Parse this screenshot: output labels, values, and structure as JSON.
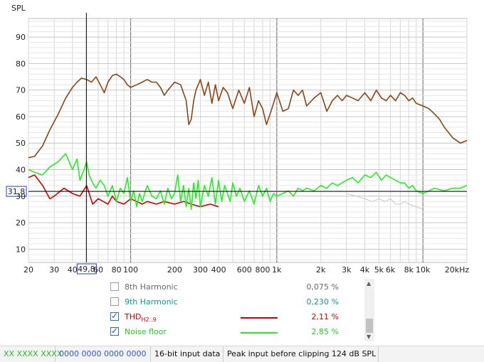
{
  "chart_data": {
    "type": "line",
    "ylabel": "SPL",
    "x_scale": "log",
    "xlim": [
      20,
      20000
    ],
    "ylim": [
      5,
      97
    ],
    "grid": true,
    "y_ticks": [
      10,
      20,
      30,
      40,
      50,
      60,
      70,
      80,
      90
    ],
    "x_ticks": [
      {
        "v": 20,
        "label": "20"
      },
      {
        "v": 30,
        "label": "30"
      },
      {
        "v": 40,
        "label": "40"
      },
      {
        "v": 60,
        "label": "60"
      },
      {
        "v": 80,
        "label": "80"
      },
      {
        "v": 100,
        "label": "100"
      },
      {
        "v": 200,
        "label": "200"
      },
      {
        "v": 300,
        "label": "300"
      },
      {
        "v": 400,
        "label": "400"
      },
      {
        "v": 600,
        "label": "600"
      },
      {
        "v": 800,
        "label": "800"
      },
      {
        "v": 1000,
        "label": "1k"
      },
      {
        "v": 2000,
        "label": "2k"
      },
      {
        "v": 3000,
        "label": "3k"
      },
      {
        "v": 4000,
        "label": "4k"
      },
      {
        "v": 5000,
        "label": "5k"
      },
      {
        "v": 6000,
        "label": "6k"
      },
      {
        "v": 8000,
        "label": "8k"
      },
      {
        "v": 10000,
        "label": "10k"
      },
      {
        "v": 20000,
        "label": "20kHz"
      }
    ],
    "cursor": {
      "x": 49.8,
      "y": 31.8,
      "x_label": "49,8",
      "y_label": "31,8"
    },
    "series": [
      {
        "name": "",
        "color": "#8b4513",
        "x": [
          20,
          22,
          25,
          28,
          32,
          36,
          40,
          43,
          46,
          50,
          54,
          58,
          62,
          66,
          70,
          75,
          80,
          85,
          90,
          95,
          100,
          110,
          120,
          130,
          140,
          150,
          160,
          170,
          180,
          200,
          220,
          240,
          250,
          260,
          270,
          280,
          290,
          300,
          320,
          340,
          360,
          380,
          400,
          430,
          460,
          500,
          550,
          600,
          650,
          700,
          750,
          800,
          850,
          900,
          950,
          1000,
          1100,
          1200,
          1300,
          1400,
          1500,
          1600,
          1800,
          2000,
          2200,
          2400,
          2600,
          2800,
          3000,
          3300,
          3600,
          4000,
          4400,
          4800,
          5200,
          5600,
          6000,
          6500,
          7000,
          7500,
          8000,
          8500,
          9000,
          10000,
          11000,
          12000,
          13000,
          14000,
          16000,
          18000,
          20000
        ],
        "y": [
          44.5,
          45,
          49,
          55,
          61,
          67,
          71,
          73,
          74.5,
          74,
          73,
          75,
          72,
          69,
          73,
          75.5,
          76,
          75,
          74,
          72,
          71,
          72,
          73,
          74,
          73,
          73,
          71,
          68,
          70,
          73,
          72,
          66,
          57,
          59,
          66,
          70,
          72,
          74,
          68,
          73,
          65,
          72,
          66,
          71,
          69,
          63,
          70,
          65,
          71,
          60,
          66,
          63,
          57,
          61,
          65,
          69,
          62,
          63,
          70,
          68,
          70,
          64,
          67,
          69,
          62,
          66,
          68,
          66,
          68,
          67,
          66,
          69,
          66,
          70,
          67,
          66,
          68,
          66,
          69,
          68,
          66,
          67,
          65,
          64,
          63,
          61,
          59,
          56,
          52,
          50,
          51
        ]
      },
      {
        "name": "THD",
        "color": "#cc0000",
        "x": [
          20,
          22,
          25,
          28,
          30,
          35,
          40,
          45,
          50,
          55,
          60,
          65,
          70,
          75,
          80,
          90,
          100,
          110,
          120,
          130,
          150,
          170,
          200,
          230,
          260,
          300,
          350,
          400
        ],
        "y": [
          37,
          38,
          34,
          29,
          30,
          33,
          31,
          30,
          34,
          27,
          29,
          28,
          27,
          30,
          28,
          27,
          29,
          28,
          27,
          28,
          27,
          28,
          27,
          28,
          27,
          26,
          27,
          26
        ]
      },
      {
        "name": "Noise floor",
        "color": "#22ee22",
        "x": [
          20,
          22,
          25,
          28,
          32,
          36,
          40,
          43,
          45,
          48,
          50,
          52,
          55,
          58,
          62,
          66,
          70,
          75,
          80,
          85,
          90,
          95,
          100,
          105,
          110,
          115,
          120,
          130,
          140,
          150,
          160,
          170,
          180,
          190,
          200,
          210,
          220,
          230,
          240,
          250,
          260,
          270,
          280,
          290,
          300,
          320,
          340,
          360,
          380,
          400,
          420,
          440,
          460,
          480,
          500,
          530,
          560,
          600,
          650,
          700,
          750,
          800,
          850,
          900,
          950,
          1000,
          1100,
          1200,
          1300,
          1400,
          1500,
          1600,
          1800,
          2000,
          2200,
          2400,
          2600,
          2800,
          3000,
          3300,
          3600,
          4000,
          4400,
          4800,
          5200,
          5600,
          6000,
          6500,
          7000,
          7500,
          8000,
          8500,
          9000,
          10000,
          11000,
          12000,
          14000,
          16000,
          18000,
          20000
        ],
        "y": [
          40,
          39,
          38,
          41,
          43,
          46,
          40,
          44,
          36,
          40,
          43,
          38,
          35,
          33,
          36,
          34,
          30,
          34,
          28,
          33,
          31,
          37,
          28,
          32,
          26,
          31,
          28,
          34,
          30,
          29,
          32,
          27,
          33,
          29,
          31,
          38,
          28,
          34,
          26,
          33,
          25,
          35,
          29,
          36,
          26,
          34,
          30,
          37,
          27,
          36,
          28,
          34,
          31,
          28,
          35,
          30,
          33,
          28,
          32,
          27,
          34,
          30,
          33,
          28,
          31,
          30,
          31,
          32,
          30,
          33,
          32,
          33,
          32,
          34,
          33,
          35,
          34,
          35,
          36,
          37,
          35,
          38,
          37,
          39,
          36,
          38,
          37,
          36,
          35,
          35,
          33,
          34,
          32,
          31,
          32,
          33,
          32,
          33,
          33,
          34
        ]
      },
      {
        "name": "",
        "color": "#c8c8c8",
        "x": [
          3000,
          3500,
          4000,
          4500,
          5000,
          5500,
          6000,
          6500,
          7000,
          7500,
          8000,
          9000,
          10000
        ],
        "y": [
          31,
          30,
          29,
          28,
          29,
          28,
          29,
          27,
          27,
          28,
          27,
          26,
          25
        ]
      }
    ]
  },
  "legend": {
    "rows": [
      {
        "label": "8th Harmonic",
        "value": "0,075 %",
        "checked": false,
        "color": "#666666"
      },
      {
        "label": "9th Harmonic",
        "value": "0,230 %",
        "checked": false,
        "color": "#0a9a9a"
      },
      {
        "label": "THD",
        "sub": "H2..9",
        "value": "2,11 %",
        "checked": true,
        "color": "#cc0000"
      },
      {
        "label": "Noise floor",
        "value": "2,85 %",
        "checked": true,
        "color": "#22dd22"
      }
    ]
  },
  "status": {
    "cell1": "XX  XXXX XXXX",
    "cell2": "0000 0000  0000 0000",
    "cell3": "16-bit input data",
    "cell4": "Peak input before clipping 124 dB SPL"
  }
}
